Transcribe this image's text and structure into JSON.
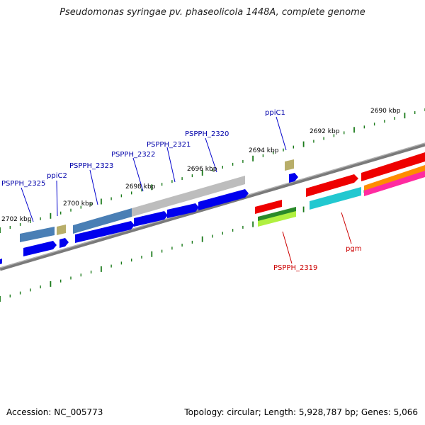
{
  "title": "Pseudomonas syringae pv. phaseolicola 1448A, complete genome",
  "accession": "Accession: NC_005773",
  "topology": "Topology: circular; Length: 5,928,787 bp; Genes: 5,066",
  "colors": {
    "tick": "#1a7a1a",
    "backbone": "#808080",
    "gene_fwd": "#0000ee",
    "gene_label_blue": "#0000aa",
    "gene_label_red": "#cc0000",
    "cds_steel": "#4a7fb5",
    "cds_gray": "#b8b8b8",
    "cds_khaki": "#b8ae6a",
    "cds_red": "#ee0000",
    "cds_cyan": "#22c8d0",
    "cds_orange": "#ff8c00",
    "cds_magenta": "#ff2aa0",
    "cds_green": "#2a8a2a",
    "cds_lime": "#b0f040"
  },
  "kbp_labels": [
    "2690 kbp",
    "2692 kbp",
    "2694 kbp",
    "2696 kbp",
    "2698 kbp",
    "2700 kbp",
    "2702 kbp"
  ],
  "gene_labels": [
    "PSPPH_2325",
    "ppiC2",
    "PSPPH_2323",
    "PSPPH_2322",
    "PSPPH_2321",
    "PSPPH_2320",
    "ppiC1",
    "PSPPH_2319",
    "pgm"
  ]
}
